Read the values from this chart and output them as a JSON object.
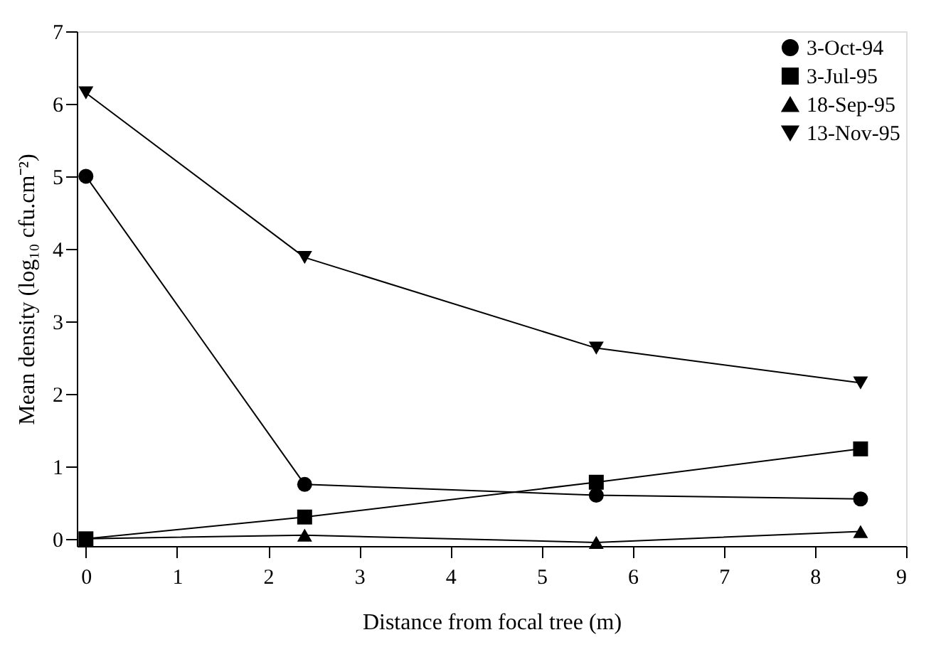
{
  "chart_data": {
    "type": "line",
    "xlabel": "Distance from focal tree (m)",
    "ylabel": "Mean density (log₁₀ cfu.cm⁻²)",
    "xlim": [
      -0.1,
      9
    ],
    "xticks": [
      0,
      1,
      2,
      3,
      4,
      5,
      6,
      7,
      8,
      9
    ],
    "ylim": [
      -0.1,
      7
    ],
    "yticks": [
      0,
      1,
      2,
      3,
      4,
      5,
      6,
      7
    ],
    "grid": false,
    "legend": "top right",
    "line_style": "solid",
    "x": [
      0,
      2.4,
      5.6,
      8.5
    ],
    "series": [
      {
        "name": "3-Oct-94",
        "color": "#000000",
        "marker": "circle",
        "values": [
          5.0,
          0.75,
          0.6,
          0.55
        ]
      },
      {
        "name": "3-Jul-95",
        "color": "#000000",
        "marker": "square",
        "values": [
          0,
          0.3,
          0.78,
          1.24
        ]
      },
      {
        "name": "18-Sep-95",
        "color": "#000000",
        "marker": "triangle",
        "values": [
          0,
          0.05,
          -0.05,
          0.1
        ]
      },
      {
        "name": "13-Nov-95",
        "color": "#000000",
        "marker": "triangle-down",
        "values": [
          6.15,
          3.88,
          2.63,
          2.15
        ]
      }
    ]
  }
}
